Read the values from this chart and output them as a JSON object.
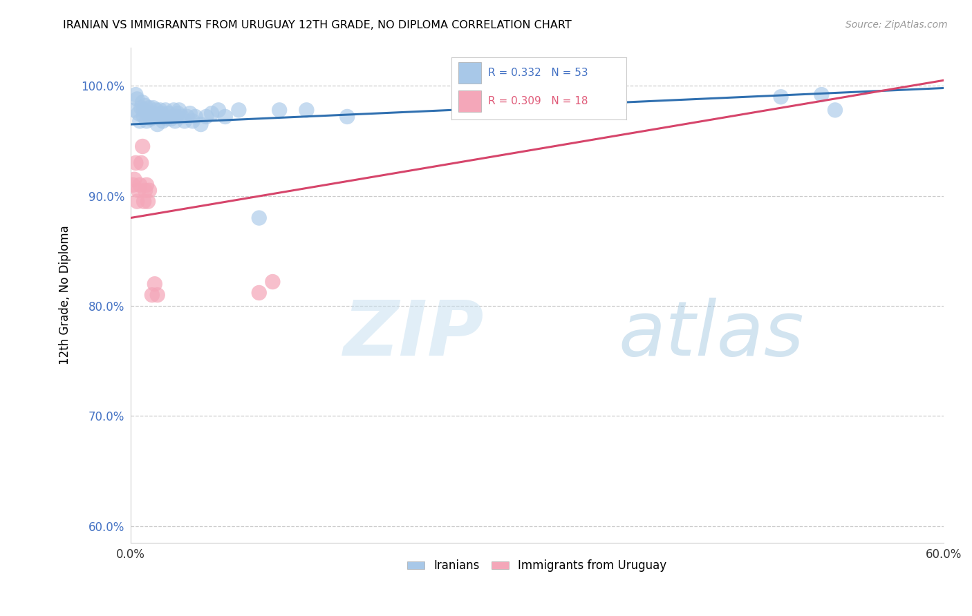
{
  "title": "IRANIAN VS IMMIGRANTS FROM URUGUAY 12TH GRADE, NO DIPLOMA CORRELATION CHART",
  "source": "Source: ZipAtlas.com",
  "ylabel": "12th Grade, No Diploma",
  "xlim": [
    0.0,
    0.6
  ],
  "ylim": [
    0.585,
    1.035
  ],
  "xticks": [
    0.0,
    0.1,
    0.2,
    0.3,
    0.4,
    0.5,
    0.6
  ],
  "xtick_labels": [
    "0.0%",
    "",
    "",
    "",
    "",
    "",
    "60.0%"
  ],
  "yticks": [
    0.6,
    0.7,
    0.8,
    0.9,
    1.0
  ],
  "ytick_labels": [
    "60.0%",
    "70.0%",
    "80.0%",
    "90.0%",
    "100.0%"
  ],
  "blue_dot_color": "#a8c8e8",
  "pink_dot_color": "#f4a7b9",
  "blue_line_color": "#3070b0",
  "pink_line_color": "#d6456b",
  "iranians_x": [
    0.003,
    0.004,
    0.005,
    0.006,
    0.007,
    0.008,
    0.009,
    0.01,
    0.01,
    0.011,
    0.012,
    0.013,
    0.014,
    0.015,
    0.016,
    0.017,
    0.018,
    0.019,
    0.02,
    0.021,
    0.022,
    0.023,
    0.024,
    0.025,
    0.026,
    0.027,
    0.028,
    0.03,
    0.031,
    0.032,
    0.033,
    0.034,
    0.035,
    0.036,
    0.038,
    0.04,
    0.042,
    0.044,
    0.046,
    0.048,
    0.052,
    0.056,
    0.06,
    0.065,
    0.07,
    0.08,
    0.095,
    0.11,
    0.13,
    0.16,
    0.48,
    0.51,
    0.52
  ],
  "iranians_y": [
    0.978,
    0.992,
    0.988,
    0.975,
    0.968,
    0.98,
    0.985,
    0.972,
    0.978,
    0.982,
    0.968,
    0.975,
    0.98,
    0.97,
    0.975,
    0.98,
    0.972,
    0.978,
    0.965,
    0.972,
    0.978,
    0.975,
    0.968,
    0.972,
    0.978,
    0.97,
    0.975,
    0.97,
    0.972,
    0.978,
    0.968,
    0.972,
    0.975,
    0.978,
    0.972,
    0.968,
    0.972,
    0.975,
    0.968,
    0.972,
    0.965,
    0.972,
    0.975,
    0.978,
    0.972,
    0.978,
    0.88,
    0.978,
    0.978,
    0.972,
    0.99,
    0.992,
    0.978
  ],
  "uruguay_x": [
    0.002,
    0.003,
    0.004,
    0.005,
    0.006,
    0.007,
    0.008,
    0.009,
    0.01,
    0.011,
    0.012,
    0.013,
    0.014,
    0.016,
    0.018,
    0.02,
    0.095,
    0.105
  ],
  "uruguay_y": [
    0.91,
    0.915,
    0.93,
    0.895,
    0.905,
    0.91,
    0.93,
    0.945,
    0.895,
    0.905,
    0.91,
    0.895,
    0.905,
    0.81,
    0.82,
    0.81,
    0.812,
    0.822
  ],
  "blue_trend_x0": 0.0,
  "blue_trend_y0": 0.965,
  "blue_trend_x1": 0.6,
  "blue_trend_y1": 0.998,
  "pink_trend_x0": 0.0,
  "pink_trend_y0": 0.88,
  "pink_trend_x1": 0.6,
  "pink_trend_y1": 1.005
}
